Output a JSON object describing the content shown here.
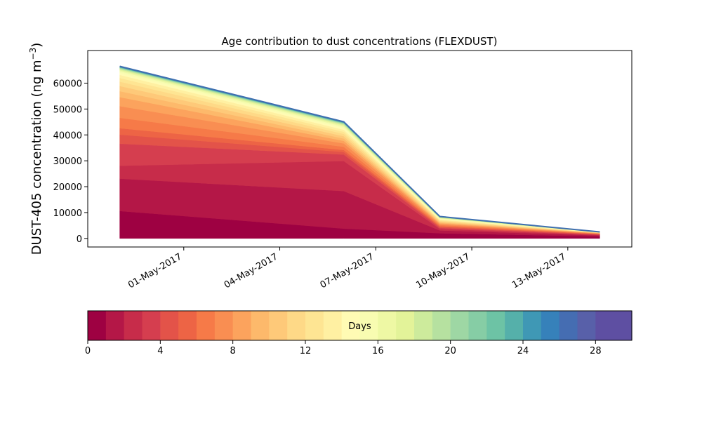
{
  "chart_data": {
    "type": "area",
    "stacked": true,
    "title": "Age contribution to dust concentrations (FLEXDUST)",
    "ylabel_main": "DUST-405 concentration (ng m",
    "ylabel_unit_sup": "−3",
    "ylabel_close": ")",
    "xlabel": "",
    "x": [
      "2017-04-29",
      "2017-05-06",
      "2017-05-09",
      "2017-05-14"
    ],
    "xlim": [
      "2017-04-28",
      "2017-05-15"
    ],
    "ylim": [
      -3300,
      72600
    ],
    "x_ticks": [
      {
        "date": "2017-05-01",
        "label": "01-May-2017"
      },
      {
        "date": "2017-05-04",
        "label": "04-May-2017"
      },
      {
        "date": "2017-05-07",
        "label": "07-May-2017"
      },
      {
        "date": "2017-05-10",
        "label": "10-May-2017"
      },
      {
        "date": "2017-05-13",
        "label": "13-May-2017"
      }
    ],
    "y_ticks": [
      {
        "value": 0,
        "label": "0"
      },
      {
        "value": 10000,
        "label": "10000"
      },
      {
        "value": 20000,
        "label": "20000"
      },
      {
        "value": 30000,
        "label": "30000"
      },
      {
        "value": 40000,
        "label": "40000"
      },
      {
        "value": 50000,
        "label": "50000"
      },
      {
        "value": 60000,
        "label": "60000"
      }
    ],
    "series": [
      {
        "values": [
          10600,
          3800,
          2000,
          800
        ]
      },
      {
        "values": [
          12500,
          14500,
          1100,
          350
        ]
      },
      {
        "values": [
          5000,
          11600,
          600,
          200
        ]
      },
      {
        "values": [
          8500,
          2500,
          400,
          150
        ]
      },
      {
        "values": [
          3500,
          1000,
          400,
          150
        ]
      },
      {
        "values": [
          2500,
          800,
          300,
          100
        ]
      },
      {
        "values": [
          4000,
          1200,
          400,
          100
        ]
      },
      {
        "values": [
          4500,
          1300,
          400,
          100
        ]
      },
      {
        "values": [
          3500,
          1000,
          300,
          100
        ]
      },
      {
        "values": [
          2300,
          900,
          300,
          80
        ]
      },
      {
        "values": [
          2000,
          900,
          300,
          60
        ]
      },
      {
        "values": [
          1700,
          900,
          300,
          50
        ]
      },
      {
        "values": [
          1400,
          800,
          300,
          40
        ]
      },
      {
        "values": [
          1200,
          800,
          250,
          30
        ]
      },
      {
        "values": [
          800,
          700,
          200,
          30
        ]
      },
      {
        "values": [
          600,
          500,
          200,
          20
        ]
      },
      {
        "values": [
          400,
          400,
          150,
          20
        ]
      },
      {
        "values": [
          300,
          300,
          100,
          15
        ]
      },
      {
        "values": [
          250,
          250,
          100,
          15
        ]
      },
      {
        "values": [
          200,
          200,
          80,
          10
        ]
      },
      {
        "values": [
          150,
          150,
          60,
          10
        ]
      },
      {
        "values": [
          120,
          120,
          50,
          10
        ]
      },
      {
        "values": [
          100,
          100,
          40,
          10
        ]
      },
      {
        "values": [
          80,
          80,
          30,
          10
        ]
      },
      {
        "values": [
          70,
          70,
          25,
          10
        ]
      },
      {
        "values": [
          60,
          60,
          20,
          10
        ]
      },
      {
        "values": [
          50,
          50,
          20,
          10
        ]
      },
      {
        "values": [
          40,
          40,
          20,
          10
        ]
      },
      {
        "values": [
          40,
          40,
          20,
          10
        ]
      },
      {
        "values": [
          30,
          30,
          20,
          10
        ]
      }
    ],
    "colorbar": {
      "label": "Days",
      "range": [
        0,
        30
      ],
      "ticks": [
        0,
        4,
        8,
        12,
        16,
        20,
        24,
        28
      ],
      "colors": [
        "#9e0142",
        "#b41747",
        "#c72c4a",
        "#d53e4f",
        "#e35349",
        "#ed6445",
        "#f67a48",
        "#f98e52",
        "#fca35d",
        "#fdb96b",
        "#fec979",
        "#fed987",
        "#fee593",
        "#fff0a2",
        "#fffbb4",
        "#f8fcb1",
        "#eef8a4",
        "#e3f399",
        "#cdeb9c",
        "#b6e1a0",
        "#9ed7a4",
        "#86cda5",
        "#6dc3a5",
        "#55b0aa",
        "#3f98b5",
        "#3681ba",
        "#456db2",
        "#5860a9",
        "#5e4fa2",
        "#5e4fa2"
      ]
    },
    "boundary_color": "#3f6fb0",
    "grid": false,
    "legend": "colorbar-bottom"
  }
}
